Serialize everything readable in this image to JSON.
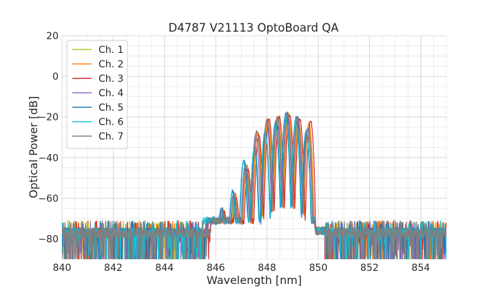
{
  "chart_data": {
    "type": "line",
    "title": "D4787 V21113 OptoBoard QA",
    "xlabel": "Wavelength [nm]",
    "ylabel": "Optical Power [dB]",
    "xlim": [
      840,
      855
    ],
    "ylim": [
      -90,
      20
    ],
    "xticks": [
      840,
      842,
      844,
      846,
      848,
      850,
      852,
      854
    ],
    "yticks": [
      20,
      0,
      -20,
      -40,
      -60,
      -80
    ],
    "xtick_labels": [
      "840",
      "842",
      "844",
      "846",
      "848",
      "850",
      "852",
      "854"
    ],
    "ytick_labels": [
      "20",
      "0",
      "−20",
      "−40",
      "−60",
      "−80"
    ],
    "grid": true,
    "legend_position": "top-left",
    "noise_floor_db": -76,
    "series": [
      {
        "name": "Ch. 1",
        "color": "#bcbd22",
        "spectrum_start_nm": 845.7,
        "peaks": [
          [
            846.3,
            -66
          ],
          [
            846.75,
            -59
          ],
          [
            847.2,
            -45
          ],
          [
            847.62,
            -28
          ],
          [
            848.02,
            -22
          ],
          [
            848.42,
            -20
          ],
          [
            848.82,
            -18
          ],
          [
            849.22,
            -21
          ],
          [
            849.62,
            -24
          ]
        ]
      },
      {
        "name": "Ch. 2",
        "color": "#ff7f0e",
        "spectrum_start_nm": 845.6,
        "peaks": [
          [
            846.32,
            -66
          ],
          [
            846.77,
            -58
          ],
          [
            847.22,
            -44
          ],
          [
            847.64,
            -27
          ],
          [
            848.04,
            -21
          ],
          [
            848.44,
            -20
          ],
          [
            848.84,
            -19
          ],
          [
            849.24,
            -22
          ],
          [
            849.64,
            -23
          ]
        ]
      },
      {
        "name": "Ch. 3",
        "color": "#d62728",
        "spectrum_start_nm": 845.8,
        "peaks": [
          [
            846.34,
            -67
          ],
          [
            846.8,
            -60
          ],
          [
            847.26,
            -46
          ],
          [
            847.68,
            -29
          ],
          [
            848.08,
            -21
          ],
          [
            848.48,
            -20
          ],
          [
            848.88,
            -19
          ],
          [
            849.28,
            -21
          ],
          [
            849.7,
            -22
          ]
        ]
      },
      {
        "name": "Ch. 4",
        "color": "#9467bd",
        "spectrum_start_nm": 845.7,
        "peaks": [
          [
            846.25,
            -65
          ],
          [
            846.7,
            -57
          ],
          [
            847.15,
            -43
          ],
          [
            847.56,
            -29
          ],
          [
            847.98,
            -22
          ],
          [
            848.38,
            -21
          ],
          [
            848.78,
            -18
          ],
          [
            849.18,
            -20
          ],
          [
            849.58,
            -26
          ]
        ]
      },
      {
        "name": "Ch. 5",
        "color": "#1f77b4",
        "spectrum_start_nm": 845.6,
        "peaks": [
          [
            846.22,
            -65
          ],
          [
            846.66,
            -56
          ],
          [
            847.1,
            -41
          ],
          [
            847.52,
            -35
          ],
          [
            847.94,
            -28
          ],
          [
            848.34,
            -22
          ],
          [
            848.74,
            -18
          ],
          [
            849.14,
            -20
          ],
          [
            849.54,
            -28
          ]
        ]
      },
      {
        "name": "Ch. 6",
        "color": "#17becf",
        "spectrum_start_nm": 845.5,
        "peaks": [
          [
            846.2,
            -65
          ],
          [
            846.64,
            -57
          ],
          [
            847.08,
            -42
          ],
          [
            847.5,
            -36
          ],
          [
            847.92,
            -27
          ],
          [
            848.32,
            -23
          ],
          [
            848.72,
            -19
          ],
          [
            849.12,
            -21
          ],
          [
            849.52,
            -27
          ]
        ]
      },
      {
        "name": "Ch. 7",
        "color": "#7f7f7f",
        "spectrum_start_nm": 845.8,
        "peaks": [
          [
            846.28,
            -66
          ],
          [
            846.72,
            -58
          ],
          [
            847.18,
            -44
          ],
          [
            847.6,
            -27
          ],
          [
            848.0,
            -21
          ],
          [
            848.4,
            -20
          ],
          [
            848.8,
            -18
          ],
          [
            849.2,
            -20
          ],
          [
            849.6,
            -25
          ]
        ]
      }
    ]
  }
}
